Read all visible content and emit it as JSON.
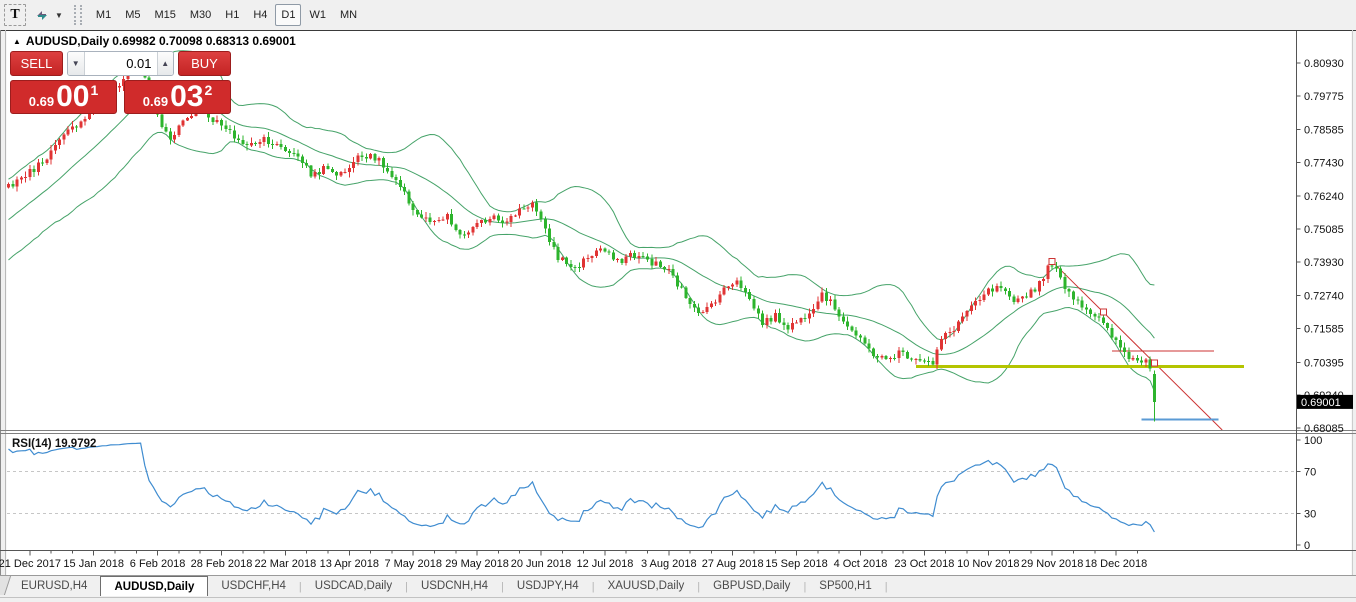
{
  "toolbar": {
    "text_tool": "T",
    "dropdown_caret": "▼",
    "timeframes": [
      "M1",
      "M5",
      "M15",
      "M30",
      "H1",
      "H4",
      "D1",
      "W1",
      "MN"
    ],
    "selected_timeframe": "D1"
  },
  "chart": {
    "title": {
      "collapse_icon": "▲",
      "symbol": "AUDUSD,Daily",
      "ohlc": "0.69982 0.70098 0.68313 0.69001"
    },
    "rsi_label": "RSI(14) 19.9792"
  },
  "trade_panel": {
    "sell_label": "SELL",
    "buy_label": "BUY",
    "volume": "0.01",
    "volume_down_icon": "▼",
    "volume_up_icon": "▲",
    "sell_price_prefix": "0.69",
    "sell_price_big": "00",
    "sell_price_sup": "1",
    "buy_price_prefix": "0.69",
    "buy_price_big": "03",
    "buy_price_sup": "2"
  },
  "bottom_tabs": {
    "separator": "|",
    "items": [
      {
        "label": "EURUSD,H4",
        "active": false
      },
      {
        "label": "AUDUSD,Daily",
        "active": true
      },
      {
        "label": "USDCHF,H4",
        "active": false
      },
      {
        "label": "USDCAD,Daily",
        "active": false
      },
      {
        "label": "USDCNH,H4",
        "active": false
      },
      {
        "label": "USDJPY,H4",
        "active": false
      },
      {
        "label": "XAUUSD,Daily",
        "active": false
      },
      {
        "label": "GBPUSD,Daily",
        "active": false
      },
      {
        "label": "SP500,H1",
        "active": false
      }
    ]
  },
  "chart_data": {
    "type": "candlestick",
    "symbol": "AUDUSD",
    "timeframe": "Daily",
    "bar_count": 270,
    "colors": {
      "bull_candle": "#e03434",
      "bear_candle": "#2db42d",
      "bollinger": "#46a369",
      "rsi_line": "#3f8cd0",
      "rsi_levels": "#c6c6c6",
      "axis_text": "#111111",
      "price_tag_bg": "#000000",
      "price_tag_text": "#ffffff",
      "trendline": "#cc3333",
      "hline_red": "#cc3333",
      "hline_yellow": "#b4c400",
      "hline_blue": "#5b9bd5"
    },
    "last_bar_ohlc": {
      "open": 0.69982,
      "high": 0.70098,
      "low": 0.68313,
      "close": 0.69001
    },
    "pre_history_keyframes": [
      [
        -20,
        0.742
      ],
      [
        -14,
        0.748
      ],
      [
        -8,
        0.756
      ],
      [
        -3,
        0.762
      ]
    ],
    "close_path_keyframes": [
      [
        0,
        0.766
      ],
      [
        3,
        0.769
      ],
      [
        6,
        0.772
      ],
      [
        10,
        0.778
      ],
      [
        14,
        0.785
      ],
      [
        18,
        0.7905
      ],
      [
        22,
        0.796
      ],
      [
        26,
        0.802
      ],
      [
        29,
        0.8075
      ],
      [
        31,
        0.809
      ],
      [
        33,
        0.799
      ],
      [
        36,
        0.787
      ],
      [
        38,
        0.783
      ],
      [
        41,
        0.789
      ],
      [
        45,
        0.7935
      ],
      [
        48,
        0.7895
      ],
      [
        52,
        0.7845
      ],
      [
        56,
        0.78
      ],
      [
        60,
        0.783
      ],
      [
        64,
        0.779
      ],
      [
        68,
        0.777
      ],
      [
        71,
        0.77
      ],
      [
        74,
        0.772
      ],
      [
        78,
        0.77
      ],
      [
        82,
        0.776
      ],
      [
        85,
        0.7775
      ],
      [
        88,
        0.773
      ],
      [
        92,
        0.765
      ],
      [
        96,
        0.756
      ],
      [
        100,
        0.7525
      ],
      [
        103,
        0.755
      ],
      [
        106,
        0.748
      ],
      [
        110,
        0.752
      ],
      [
        114,
        0.756
      ],
      [
        117,
        0.753
      ],
      [
        120,
        0.758
      ],
      [
        123,
        0.76
      ],
      [
        126,
        0.75
      ],
      [
        129,
        0.741
      ],
      [
        133,
        0.737
      ],
      [
        136,
        0.741
      ],
      [
        139,
        0.744
      ],
      [
        143,
        0.739
      ],
      [
        146,
        0.742
      ],
      [
        150,
        0.74
      ],
      [
        155,
        0.736
      ],
      [
        159,
        0.727
      ],
      [
        163,
        0.721
      ],
      [
        167,
        0.728
      ],
      [
        171,
        0.7335
      ],
      [
        174,
        0.726
      ],
      [
        177,
        0.718
      ],
      [
        180,
        0.72
      ],
      [
        183,
        0.7165
      ],
      [
        186,
        0.719
      ],
      [
        189,
        0.724
      ],
      [
        191,
        0.7285
      ],
      [
        194,
        0.723
      ],
      [
        197,
        0.717
      ],
      [
        200,
        0.7115
      ],
      [
        203,
        0.707
      ],
      [
        206,
        0.7045
      ],
      [
        209,
        0.7075
      ],
      [
        212,
        0.706
      ],
      [
        215,
        0.705
      ],
      [
        217,
        0.703
      ],
      [
        219,
        0.712
      ],
      [
        222,
        0.716
      ],
      [
        225,
        0.722
      ],
      [
        228,
        0.7255
      ],
      [
        230,
        0.729
      ],
      [
        233,
        0.73
      ],
      [
        236,
        0.724
      ],
      [
        238,
        0.727
      ],
      [
        241,
        0.73
      ],
      [
        245,
        0.739
      ],
      [
        247,
        0.733
      ],
      [
        250,
        0.727
      ],
      [
        253,
        0.723
      ],
      [
        256,
        0.719
      ],
      [
        259,
        0.713
      ],
      [
        261,
        0.709
      ],
      [
        263,
        0.706
      ],
      [
        265,
        0.7045
      ],
      [
        267,
        0.7055
      ],
      [
        268,
        0.703
      ],
      [
        269,
        0.69001
      ]
    ],
    "noise_seed": 7,
    "noise_amplitude": 0.0013,
    "indicators": [
      {
        "name": "Bollinger Bands",
        "period": 20,
        "deviation": 2
      },
      {
        "name": "RSI",
        "period": 14,
        "last_value": 19.9792,
        "levels": [
          70,
          30
        ]
      }
    ],
    "objects": [
      {
        "type": "trendline",
        "points": [
          [
            245,
            0.7394
          ],
          [
            269,
            0.70375
          ]
        ],
        "ray": true,
        "handles": true
      },
      {
        "type": "hline_segment",
        "color_key": "hline_red",
        "price": 0.708,
        "bar_start": 259,
        "bar_end": 283,
        "width": 1
      },
      {
        "type": "hline_segment",
        "color_key": "hline_yellow",
        "price": 0.7025,
        "bar_start": 213,
        "bar_end": 290,
        "width": 3
      },
      {
        "type": "hline_segment",
        "color_key": "hline_blue",
        "price": 0.6838,
        "bar_start": 266,
        "bar_end": 284,
        "width": 2
      }
    ],
    "price_axis": {
      "tick_labels": [
        "0.80930",
        "0.79775",
        "0.78585",
        "0.77430",
        "0.76240",
        "0.75085",
        "0.73930",
        "0.72740",
        "0.71585",
        "0.70395",
        "0.69240",
        "0.68085"
      ],
      "current_price": "0.69001"
    },
    "rsi_axis": {
      "tick_labels": [
        "100",
        "70",
        "30",
        "0"
      ]
    },
    "date_axis": {
      "labels": [
        "21 Dec 2017",
        "15 Jan 2018",
        "6 Feb 2018",
        "28 Feb 2018",
        "22 Mar 2018",
        "13 Apr 2018",
        "7 May 2018",
        "29 May 2018",
        "20 Jun 2018",
        "12 Jul 2018",
        "3 Aug 2018",
        "27 Aug 2018",
        "15 Sep 2018",
        "4 Oct 2018",
        "23 Oct 2018",
        "10 Nov 2018",
        "29 Nov 2018",
        "18 Dec 2018"
      ],
      "first_label_bar": 5,
      "label_every_bars": 15,
      "tick_every_bars": 5
    }
  }
}
